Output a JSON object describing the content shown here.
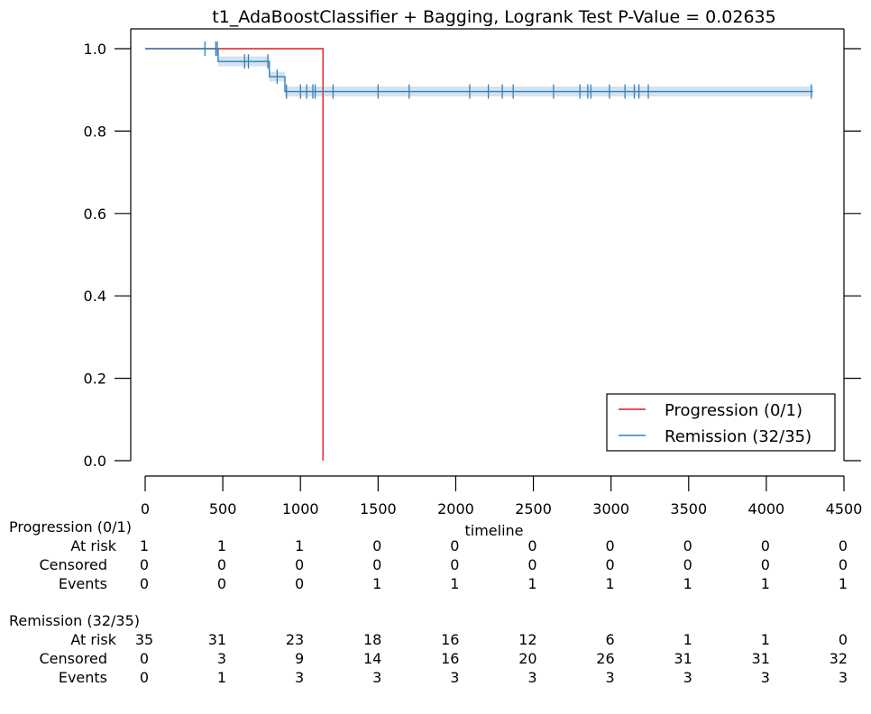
{
  "chart_data": {
    "type": "line",
    "title": "t1_AdaBoostClassifier + Bagging, Logrank Test P-Value = 0.02635",
    "xlabel": "timeline",
    "ylabel": "",
    "xlim": [
      0,
      4500
    ],
    "ylim": [
      0.0,
      1.05
    ],
    "xticks": [
      0,
      500,
      1000,
      1500,
      2000,
      2500,
      3000,
      3500,
      4000,
      4500
    ],
    "yticks": [
      0.0,
      0.2,
      0.4,
      0.6,
      0.8,
      1.0
    ],
    "xtick_labels": [
      "0",
      "500",
      "1000",
      "1500",
      "2000",
      "2500",
      "3000",
      "3500",
      "4000",
      "4500"
    ],
    "ytick_labels": [
      "0.0",
      "0.2",
      "0.4",
      "0.6",
      "0.8",
      "1.0"
    ],
    "grid": false,
    "legend_position": "bottom-right",
    "series": [
      {
        "name": "Progression (0/1)",
        "color": "#e41a1c",
        "steps": [
          [
            0,
            1.0
          ],
          [
            1145,
            1.0
          ],
          [
            1145,
            0.0
          ]
        ],
        "censor_times": []
      },
      {
        "name": "Remission (32/35)",
        "color": "#377eb8",
        "steps": [
          [
            0,
            1.0
          ],
          [
            470,
            1.0
          ],
          [
            470,
            0.969
          ],
          [
            800,
            0.969
          ],
          [
            800,
            0.932
          ],
          [
            900,
            0.932
          ],
          [
            900,
            0.896
          ],
          [
            4300,
            0.896
          ]
        ],
        "censor_times": [
          385,
          455,
          465,
          640,
          665,
          790,
          850,
          910,
          1000,
          1040,
          1080,
          1095,
          1210,
          1500,
          1700,
          2090,
          2210,
          2300,
          2370,
          2630,
          2800,
          2850,
          2870,
          2990,
          3090,
          3150,
          3180,
          3240,
          4290
        ],
        "ci_band": 0.012
      }
    ],
    "risk_table": {
      "groups": [
        {
          "name": "Progression (0/1)",
          "rows": [
            {
              "label": "At risk",
              "values": [
                1,
                1,
                1,
                0,
                0,
                0,
                0,
                0,
                0,
                0
              ]
            },
            {
              "label": "Censored",
              "values": [
                0,
                0,
                0,
                0,
                0,
                0,
                0,
                0,
                0,
                0
              ]
            },
            {
              "label": "Events",
              "values": [
                0,
                0,
                0,
                1,
                1,
                1,
                1,
                1,
                1,
                1
              ]
            }
          ]
        },
        {
          "name": "Remission (32/35)",
          "rows": [
            {
              "label": "At risk",
              "values": [
                35,
                31,
                23,
                18,
                16,
                12,
                6,
                1,
                1,
                0
              ]
            },
            {
              "label": "Censored",
              "values": [
                0,
                3,
                9,
                14,
                16,
                20,
                26,
                31,
                31,
                32
              ]
            },
            {
              "label": "Events",
              "values": [
                0,
                1,
                3,
                3,
                3,
                3,
                3,
                3,
                3,
                3
              ]
            }
          ]
        }
      ]
    }
  }
}
